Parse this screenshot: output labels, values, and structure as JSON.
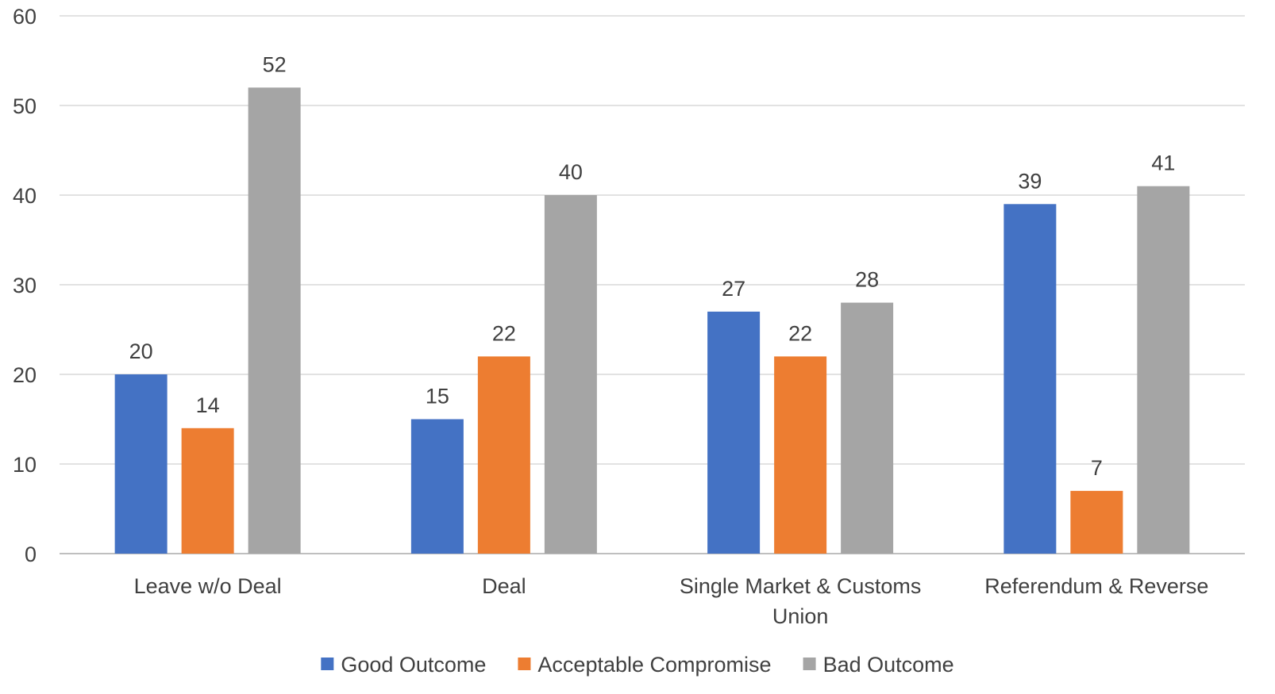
{
  "chart_data": {
    "type": "bar",
    "title": "",
    "xlabel": "",
    "ylabel": "",
    "ylim": [
      0,
      60
    ],
    "yticks": [
      0,
      10,
      20,
      30,
      40,
      50,
      60
    ],
    "grid": true,
    "legend_position": "bottom",
    "categories": [
      [
        "Leave w/o Deal"
      ],
      [
        "Deal"
      ],
      [
        "Single Market & Customs",
        "Union"
      ],
      [
        "Referendum & Reverse"
      ]
    ],
    "series": [
      {
        "name": "Good Outcome",
        "color": "#4472c4",
        "values": [
          20,
          15,
          27,
          39
        ]
      },
      {
        "name": "Acceptable Compromise",
        "color": "#ed7d31",
        "values": [
          14,
          22,
          22,
          7
        ]
      },
      {
        "name": "Bad Outcome",
        "color": "#a5a5a5",
        "values": [
          52,
          40,
          28,
          41
        ]
      }
    ],
    "show_data_labels": true
  }
}
